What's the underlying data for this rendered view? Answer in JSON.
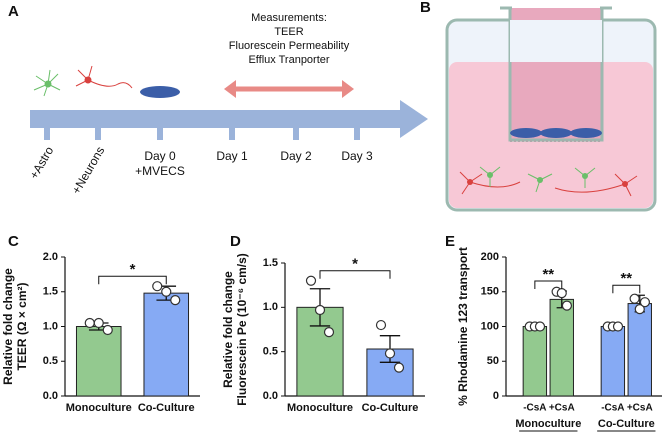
{
  "panels": [
    "A",
    "B",
    "C",
    "D",
    "E"
  ],
  "timeline": {
    "measurements": [
      "Measurements:",
      "TEER",
      "Fluorescein Permeability",
      "Efflux Tranporter"
    ],
    "steps": [
      [
        "+Astro"
      ],
      [
        "+Neurons"
      ],
      [
        "Day 0",
        "+MVECS"
      ],
      [
        "Day 1"
      ],
      [
        "Day 2"
      ],
      [
        "Day 3"
      ]
    ]
  },
  "chart_data": [
    {
      "type": "bar",
      "ylabel": [
        "Relative fold change",
        "TEER (Ω × cm²)"
      ],
      "categories": [
        "Monoculture",
        "Co-Culture"
      ],
      "values": [
        1.0,
        1.48
      ],
      "errors": [
        0.05,
        0.1
      ],
      "points": [
        [
          1.05,
          1.05,
          0.95
        ],
        [
          1.58,
          1.5,
          1.38
        ]
      ],
      "colors": [
        "#93c98f",
        "#86aaf4"
      ],
      "ylim": [
        0,
        2.0
      ],
      "yticks": [
        {
          "value": 0,
          "label": "0.0"
        },
        0.5,
        {
          "value": 1,
          "label": "1.0"
        },
        1.5,
        {
          "value": 2,
          "label": "2.0"
        }
      ],
      "annotations": [
        "*"
      ]
    },
    {
      "type": "bar",
      "ylabel": [
        "Relative fold change",
        "Fluorescein Pe (10⁻⁶ cm/s)"
      ],
      "categories": [
        "Monoculture",
        "Co-Culture"
      ],
      "values": [
        1.0,
        0.53
      ],
      "errors": [
        0.21,
        0.15
      ],
      "points": [
        [
          1.3,
          0.97,
          0.72
        ],
        [
          0.8,
          0.48,
          0.32
        ]
      ],
      "colors": [
        "#93c98f",
        "#86aaf4"
      ],
      "ylim": [
        0,
        1.5
      ],
      "yticks": [
        {
          "value": 0,
          "label": "0.0"
        },
        0.5,
        {
          "value": 1,
          "label": "1.0"
        },
        1.5
      ],
      "annotations": [
        "*"
      ]
    },
    {
      "type": "bar",
      "ylabel": [
        "% Rhodamine 123 transport"
      ],
      "categories": [
        "-CsA",
        "+CsA",
        "-CsA",
        "+CsA"
      ],
      "groups": [
        "Monoculture",
        "Co-Culture"
      ],
      "values": [
        100,
        139,
        100,
        133
      ],
      "errors": [
        0,
        12,
        0,
        12
      ],
      "points": [
        [
          100,
          100,
          100
        ],
        [
          150,
          148,
          130
        ],
        [
          100,
          100,
          100
        ],
        [
          140,
          125,
          135
        ]
      ],
      "colors": [
        "#93c98f",
        "#93c98f",
        "#86aaf4",
        "#86aaf4"
      ],
      "ylim": [
        0,
        200
      ],
      "yticks": [
        0,
        50,
        100,
        150,
        200
      ],
      "annotations": [
        "**",
        "**"
      ]
    }
  ]
}
